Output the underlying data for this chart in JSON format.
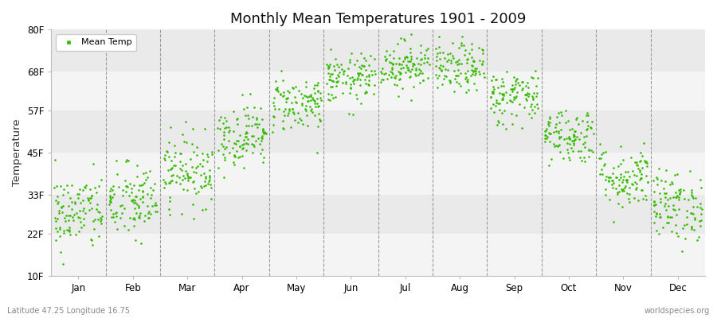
{
  "title": "Monthly Mean Temperatures 1901 - 2009",
  "ylabel": "Temperature",
  "xlabel_bottom_left": "Latitude 47.25 Longitude 16.75",
  "xlabel_bottom_right": "worldspecies.org",
  "legend_label": "Mean Temp",
  "ytick_labels": [
    "10F",
    "22F",
    "33F",
    "45F",
    "57F",
    "68F",
    "80F"
  ],
  "ytick_values": [
    10,
    22,
    33,
    45,
    57,
    68,
    80
  ],
  "ylim": [
    10,
    80
  ],
  "months": [
    "Jan",
    "Feb",
    "Mar",
    "Apr",
    "May",
    "Jun",
    "Jul",
    "Aug",
    "Sep",
    "Oct",
    "Nov",
    "Dec"
  ],
  "dot_color": "#33bb00",
  "dot_size": 3.5,
  "background_color": "#ffffff",
  "band_light": "#f4f4f4",
  "band_dark": "#eaeaea",
  "title_fontsize": 13,
  "axis_fontsize": 8.5,
  "legend_fontsize": 8,
  "monthly_means_F": [
    28,
    31,
    40,
    50,
    59,
    66,
    70,
    69,
    61,
    50,
    38,
    30
  ],
  "monthly_stds_F": [
    5.5,
    5.5,
    5,
    4.5,
    4,
    3.5,
    3.5,
    3.5,
    4,
    4,
    4.5,
    5
  ],
  "n_years": 109,
  "seed": 42
}
